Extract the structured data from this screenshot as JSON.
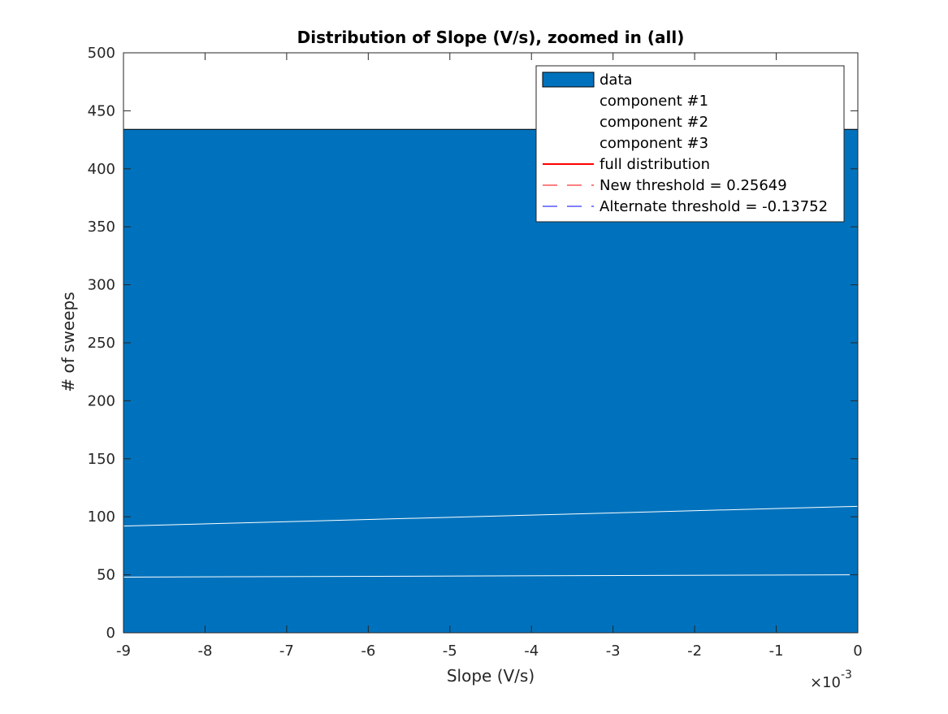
{
  "chart_data": {
    "type": "bar",
    "title": "Distribution of Slope (V/s), zoomed in (all)",
    "xlabel": "Slope (V/s)",
    "ylabel": "# of sweeps",
    "x_exponent_label": "×10",
    "x_exponent_power": "-3",
    "xlim": [
      -0.009,
      0
    ],
    "ylim": [
      0,
      500
    ],
    "xticks": [
      -0.009,
      -0.008,
      -0.007,
      -0.006,
      -0.005,
      -0.004,
      -0.003,
      -0.002,
      -0.001,
      0
    ],
    "xtick_labels": [
      "-9",
      "-8",
      "-7",
      "-6",
      "-5",
      "-4",
      "-3",
      "-2",
      "-1",
      "0"
    ],
    "yticks": [
      0,
      50,
      100,
      150,
      200,
      250,
      300,
      350,
      400,
      450,
      500
    ],
    "ytick_labels": [
      "0",
      "50",
      "100",
      "150",
      "200",
      "250",
      "300",
      "350",
      "400",
      "450",
      "500"
    ],
    "grid": false,
    "legend_position": "top-right",
    "bars": [
      {
        "x_start": -0.009,
        "x_end": 0,
        "value": 434
      }
    ],
    "series": [
      {
        "name": "data",
        "kind": "histogram",
        "color": "#0072bd"
      },
      {
        "name": "component #1",
        "kind": "line",
        "color": "#ffffff",
        "x": [
          -0.009,
          -0.0001
        ],
        "y": [
          48,
          50
        ]
      },
      {
        "name": "component #2",
        "kind": "line",
        "color": "#ffffff",
        "x": [
          -0.009,
          0
        ],
        "y": [
          92,
          109
        ]
      },
      {
        "name": "component #3",
        "kind": "line",
        "color": "#ffffff",
        "x": [],
        "y": []
      },
      {
        "name": "full distribution",
        "kind": "line",
        "color": "#ff0000",
        "x": [],
        "y": []
      },
      {
        "name": "New threshold = 0.25649",
        "kind": "dashed-vline",
        "color": "#ff0000",
        "x_value": 0.25649
      },
      {
        "name": "Alternate threshold = -0.13752",
        "kind": "dashed-vline",
        "color": "#0000ff",
        "x_value": -0.13752
      }
    ],
    "legend": [
      {
        "label": "data",
        "style": "patch",
        "color": "#0072bd"
      },
      {
        "label": "component #1",
        "style": "solid",
        "color": "#ffffff"
      },
      {
        "label": "component #2",
        "style": "solid",
        "color": "#ffffff"
      },
      {
        "label": "component #3",
        "style": "solid",
        "color": "#ffffff"
      },
      {
        "label": "full distribution",
        "style": "solid",
        "color": "#ff0000"
      },
      {
        "label": "New threshold = 0.25649",
        "style": "dashed",
        "color": "#ff0000"
      },
      {
        "label": "Alternate threshold = -0.13752",
        "style": "dashed",
        "color": "#0000ff"
      }
    ]
  }
}
